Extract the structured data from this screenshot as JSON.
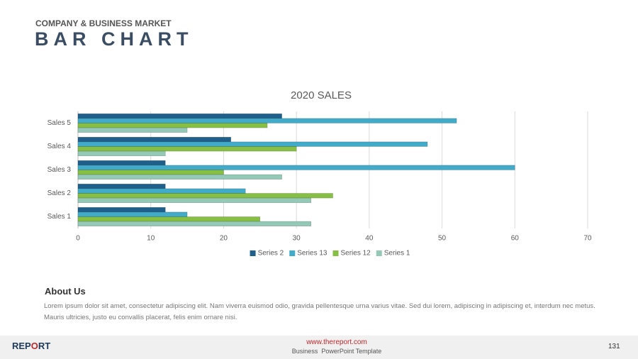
{
  "header": {
    "subtitle": "COMPANY & BUSINESS MARKET",
    "title": "BAR CHART"
  },
  "chart_data": {
    "type": "hbar",
    "title": "2020 SALES",
    "categories": [
      "Sales 1",
      "Sales 2",
      "Sales 3",
      "Sales 4",
      "Sales 5"
    ],
    "series": [
      {
        "name": "Series 2",
        "color": "#1f5f8b",
        "values": [
          12,
          12,
          12,
          21,
          28
        ]
      },
      {
        "name": "Series 13",
        "color": "#41abc9",
        "values": [
          15,
          23,
          60,
          48,
          52
        ]
      },
      {
        "name": "Series 12",
        "color": "#86bf43",
        "values": [
          25,
          35,
          20,
          30,
          26
        ]
      },
      {
        "name": "Series 1",
        "color": "#93c9b6",
        "values": [
          32,
          32,
          28,
          12,
          15
        ]
      }
    ],
    "xlim": [
      0,
      70
    ],
    "xticks": [
      0,
      10,
      20,
      30,
      40,
      50,
      60,
      70
    ],
    "grid": true,
    "legend": "bottom"
  },
  "about": {
    "heading": "About Us",
    "text": "Lorem ipsum dolor sit amet, consectetur adipiscing elit. Nam viverra euismod odio, gravida pellentesque urna varius vitae. Sed dui lorem, adipiscing in adipiscing et, interdum nec metus. Mauris ultricies, justo eu convallis placerat, felis enim ornare nisi."
  },
  "footer": {
    "logo": [
      "REP",
      "O",
      "RT"
    ],
    "url": "www.thereport.com",
    "tagline": "Business  PowerPoint Template",
    "page": "131"
  }
}
